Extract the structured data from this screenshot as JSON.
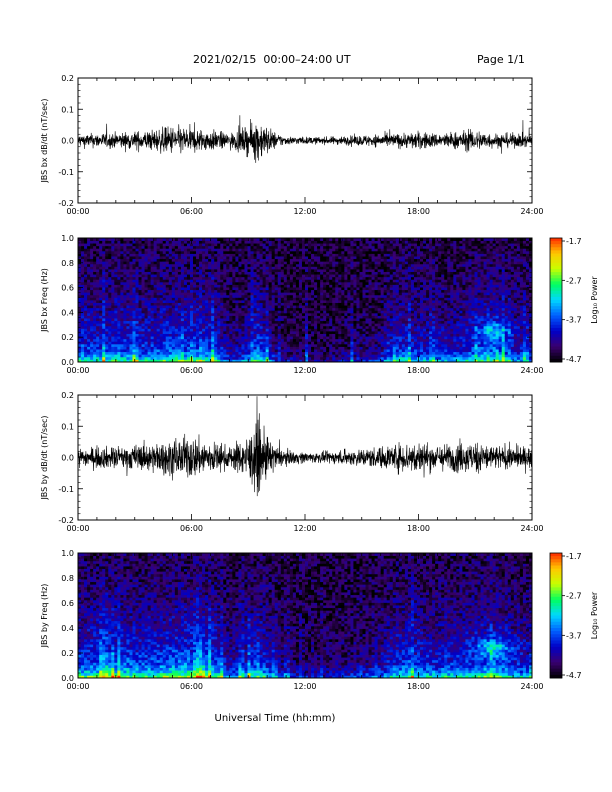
{
  "header": {
    "title": "2021/02/15  00:00–24:00 UT",
    "page": "Page 1/1"
  },
  "xlabel": "Universal Time (hh:mm)",
  "x_ticks": [
    "00:00",
    "06:00",
    "12:00",
    "18:00",
    "24:00"
  ],
  "colorbar": {
    "label": "Log₁₀ Power",
    "ticks": [
      "-1.7",
      "-2.7",
      "-3.7",
      "-4.7"
    ],
    "range": [
      -4.7,
      -1.7
    ],
    "colormap": [
      "#000000",
      "#3a0070",
      "#0000c8",
      "#0060ff",
      "#00d8ff",
      "#00ff60",
      "#c8ff00",
      "#ffc800",
      "#ff2800"
    ]
  },
  "chart_data": [
    {
      "type": "line",
      "id": "bx-timeseries",
      "ylabel": "JBS bx dB/dt (nT/sec)",
      "y_ticks": [
        "0.2",
        "0.1",
        "0.0",
        "-0.1",
        "-0.2"
      ],
      "xlim": [
        0,
        24
      ],
      "ylim": [
        -0.2,
        0.2
      ],
      "color": "#000000",
      "envelope": {
        "x_hours": [
          0,
          1,
          2,
          3,
          4,
          5,
          6,
          7,
          8,
          9,
          9.5,
          10,
          10.5,
          11,
          12,
          13,
          14,
          15,
          16,
          17,
          18,
          19,
          20,
          21,
          22,
          23,
          24
        ],
        "amplitude": [
          0.018,
          0.02,
          0.022,
          0.025,
          0.03,
          0.04,
          0.035,
          0.03,
          0.02,
          0.04,
          0.06,
          0.04,
          0.02,
          0.012,
          0.01,
          0.01,
          0.012,
          0.015,
          0.018,
          0.02,
          0.025,
          0.02,
          0.025,
          0.03,
          0.02,
          0.02,
          0.018
        ]
      }
    },
    {
      "type": "heatmap",
      "id": "bx-spectrogram",
      "ylabel": "JBS bx Freq (Hz)",
      "y_ticks": [
        "1.0",
        "0.8",
        "0.6",
        "0.4",
        "0.2",
        "0.0"
      ],
      "xlim": [
        0,
        24
      ],
      "ylim": [
        0,
        1.0
      ],
      "z_range": [
        -4.7,
        -1.7
      ],
      "activity": {
        "x_hours": [
          0,
          1,
          2,
          3,
          4,
          5,
          6,
          7,
          8,
          9,
          9.5,
          10,
          10.5,
          11,
          12,
          13,
          14,
          15,
          16,
          17,
          18,
          19,
          20,
          21,
          22,
          23,
          24
        ],
        "level": [
          0.55,
          0.5,
          0.55,
          0.5,
          0.5,
          0.6,
          0.55,
          0.6,
          0.2,
          0.35,
          0.6,
          0.4,
          0.15,
          0.08,
          0.05,
          0.05,
          0.08,
          0.12,
          0.2,
          0.5,
          0.4,
          0.35,
          0.4,
          0.5,
          0.6,
          0.35,
          0.3
        ]
      },
      "hotspot": {
        "hour": 22.0,
        "freq": 0.25,
        "strength": 0.6
      }
    },
    {
      "type": "line",
      "id": "by-timeseries",
      "ylabel": "JBS by dB/dt (nT/sec)",
      "y_ticks": [
        "0.2",
        "0.1",
        "0.0",
        "-0.1",
        "-0.2"
      ],
      "xlim": [
        0,
        24
      ],
      "ylim": [
        -0.2,
        0.2
      ],
      "color": "#000000",
      "envelope": {
        "x_hours": [
          0,
          1,
          2,
          3,
          4,
          5,
          6,
          7,
          8,
          9,
          9.5,
          10,
          10.5,
          11,
          12,
          13,
          14,
          15,
          16,
          17,
          18,
          19,
          20,
          21,
          22,
          23,
          24
        ],
        "amplitude": [
          0.025,
          0.03,
          0.03,
          0.035,
          0.04,
          0.05,
          0.06,
          0.045,
          0.03,
          0.06,
          0.1,
          0.06,
          0.03,
          0.02,
          0.015,
          0.015,
          0.02,
          0.025,
          0.03,
          0.04,
          0.045,
          0.035,
          0.04,
          0.045,
          0.035,
          0.03,
          0.03
        ]
      }
    },
    {
      "type": "heatmap",
      "id": "by-spectrogram",
      "ylabel": "JBS by Freq (Hz)",
      "y_ticks": [
        "1.0",
        "0.8",
        "0.6",
        "0.4",
        "0.2",
        "0.0"
      ],
      "xlim": [
        0,
        24
      ],
      "ylim": [
        0,
        1.0
      ],
      "z_range": [
        -4.7,
        -1.7
      ],
      "activity": {
        "x_hours": [
          0,
          1,
          2,
          3,
          4,
          5,
          6,
          7,
          8,
          9,
          9.5,
          10,
          10.5,
          11,
          12,
          13,
          14,
          15,
          16,
          17,
          18,
          19,
          20,
          21,
          22,
          23,
          24
        ],
        "level": [
          0.6,
          0.6,
          0.65,
          0.6,
          0.6,
          0.7,
          0.7,
          0.7,
          0.3,
          0.45,
          0.65,
          0.45,
          0.25,
          0.15,
          0.1,
          0.12,
          0.15,
          0.2,
          0.3,
          0.55,
          0.5,
          0.45,
          0.5,
          0.55,
          0.65,
          0.45,
          0.4
        ]
      },
      "hotspot": {
        "hour": 22.0,
        "freq": 0.25,
        "strength": 0.7
      }
    }
  ]
}
